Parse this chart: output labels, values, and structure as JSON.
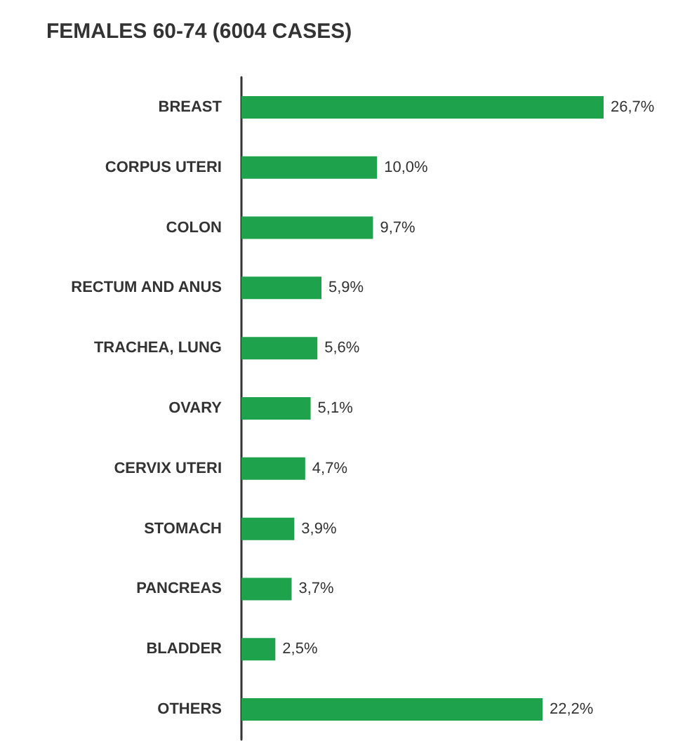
{
  "chart_data": {
    "type": "bar",
    "orientation": "horizontal",
    "title": "FEMALES 60-74 (6004 CASES)",
    "categories": [
      "BREAST",
      "CORPUS UTERI",
      "COLON",
      "RECTUM AND ANUS",
      "TRACHEA, LUNG",
      "OVARY",
      "CERVIX UTERI",
      "STOMACH",
      "PANCREAS",
      "BLADDER",
      "OTHERS"
    ],
    "values": [
      26.7,
      10.0,
      9.7,
      5.9,
      5.6,
      5.1,
      4.7,
      3.9,
      3.7,
      2.5,
      22.2
    ],
    "value_labels": [
      "26,7%",
      "10,0%",
      "9,7%",
      "5,9%",
      "5,6%",
      "5,1%",
      "4,7%",
      "3,9%",
      "3,7%",
      "2,5%",
      "22,2%"
    ],
    "color": "#1ea24c"
  }
}
